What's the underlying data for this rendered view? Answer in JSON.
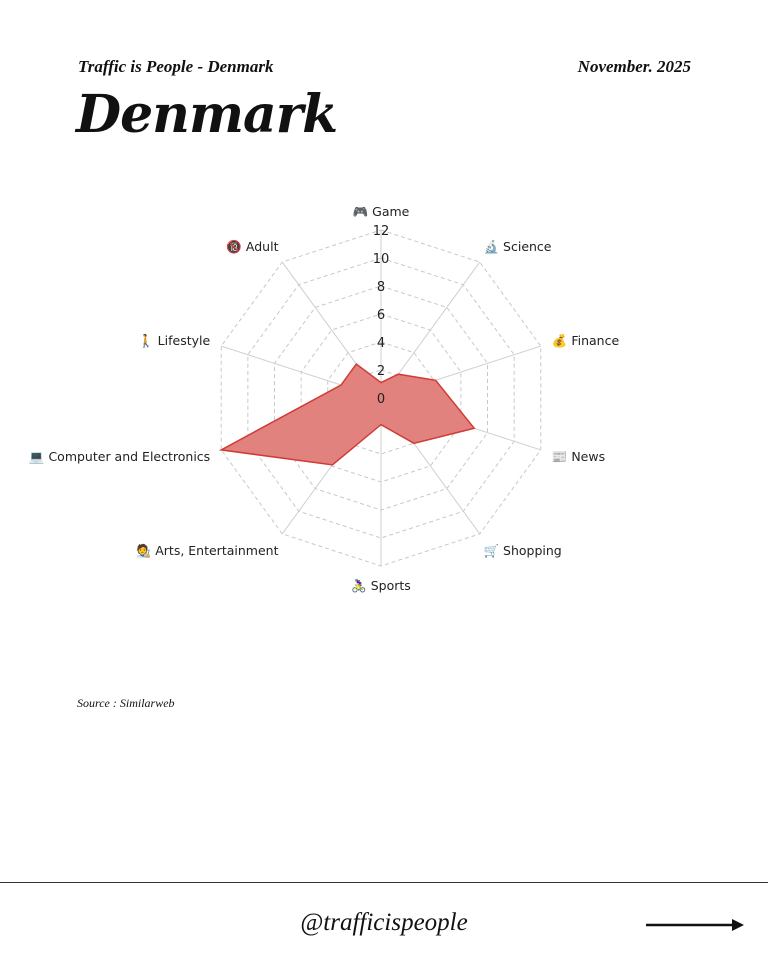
{
  "header": {
    "subtitle": "Traffic is People - Denmark",
    "date": "November. 2025",
    "title": "Denmark"
  },
  "chart_data": {
    "type": "radar",
    "categories": [
      "🎮 Game",
      "🔬 Science",
      "💰 Finance",
      "📰 News",
      "🛒 Shopping",
      "🚴‍♀️ Sports",
      "🧑‍🎨 Arts, Entertainment",
      "💻 Computer and Electronics",
      "🚶 Lifestyle",
      "🔞 Adult"
    ],
    "values": [
      1.1,
      2.1,
      4.1,
      7.0,
      4.0,
      1.9,
      5.9,
      12,
      3.0,
      3.0
    ],
    "ticks": [
      "0",
      "2",
      "4",
      "6",
      "8",
      "10",
      "12"
    ],
    "rmax": 12,
    "grid": true,
    "fill_color": "#e07b78",
    "line_color": "#d03c35"
  },
  "footer": {
    "source": "Source : Similarweb",
    "handle": "@trafficispeople"
  }
}
